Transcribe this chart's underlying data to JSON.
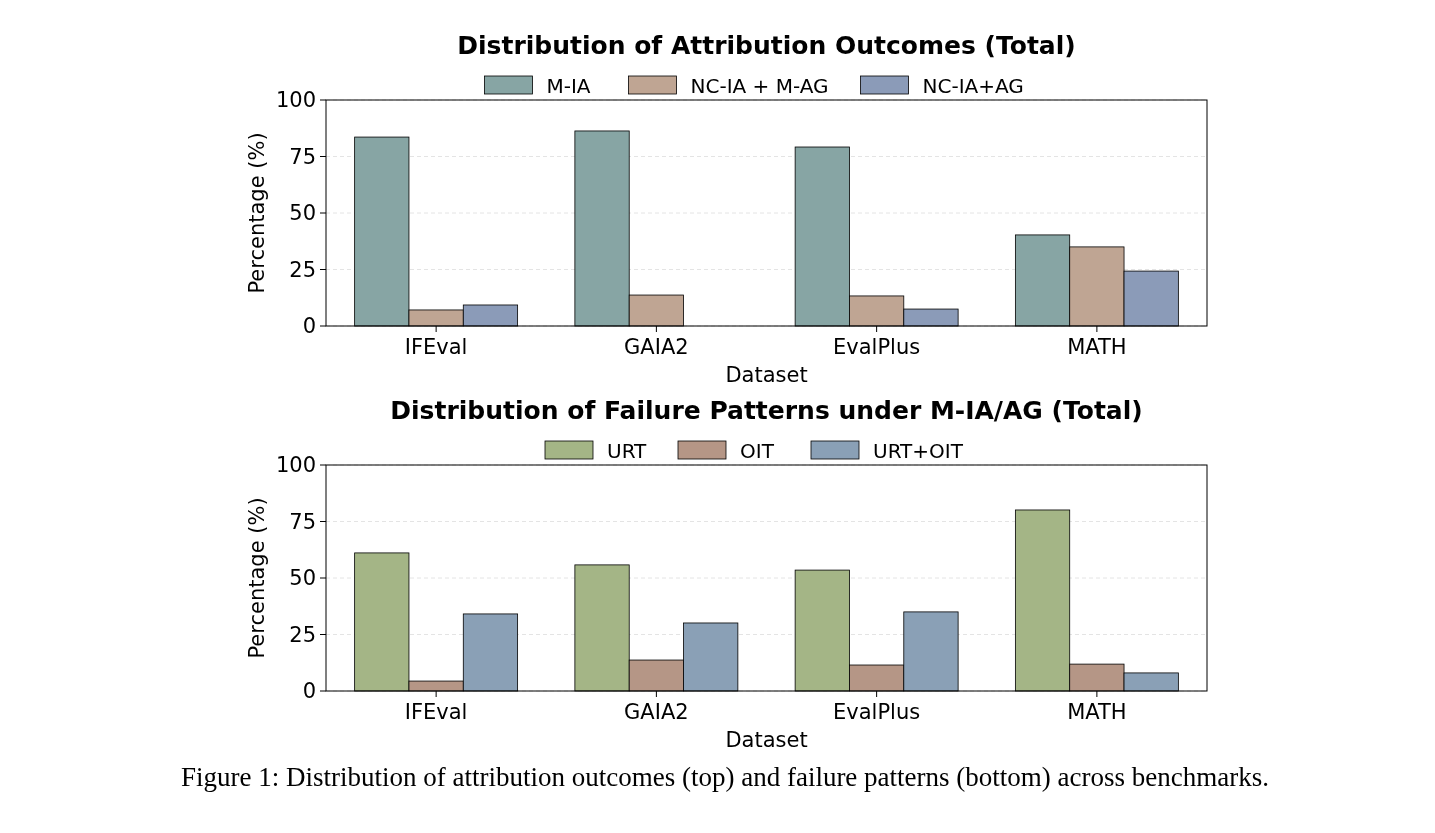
{
  "chart_data": [
    {
      "type": "bar",
      "title": "Distribution of Attribution Outcomes (Total)",
      "xlabel": "Dataset",
      "ylabel": "Percentage (%)",
      "categories": [
        "IFEval",
        "GAIA2",
        "EvalPlus",
        "MATH"
      ],
      "series": [
        {
          "name": "M-IA",
          "color": "#87a5a4",
          "values": [
            83.6,
            86.3,
            79.2,
            40.3
          ]
        },
        {
          "name": "NC-IA + M-AG",
          "color": "#bfa593",
          "values": [
            7.1,
            13.7,
            13.3,
            35.0
          ]
        },
        {
          "name": "NC-IA+AG",
          "color": "#8b9bb8",
          "values": [
            9.3,
            0,
            7.5,
            24.3
          ]
        }
      ],
      "ylim": [
        0,
        100
      ],
      "yticks": [
        0,
        25,
        50,
        75,
        100
      ],
      "grid": "y",
      "legend": "top"
    },
    {
      "type": "bar",
      "title": "Distribution of Failure Patterns under M-IA/AG (Total)",
      "xlabel": "Dataset",
      "ylabel": "Percentage (%)",
      "categories": [
        "IFEval",
        "GAIA2",
        "EvalPlus",
        "MATH"
      ],
      "series": [
        {
          "name": "URT",
          "color": "#a4b586",
          "values": [
            61.1,
            55.8,
            53.5,
            80.1
          ]
        },
        {
          "name": "OIT",
          "color": "#b59686",
          "values": [
            4.4,
            13.7,
            11.5,
            11.9
          ]
        },
        {
          "name": "URT+OIT",
          "color": "#8aa0b6",
          "values": [
            34.1,
            30.1,
            35.0,
            8.0
          ]
        }
      ],
      "ylim": [
        0,
        100
      ],
      "yticks": [
        0,
        25,
        50,
        75,
        100
      ],
      "grid": "y",
      "legend": "top",
      "annotations": [
        "Figure 1: Distribution of attribution outcomes (top) and failure patterns (bottom) across benchmarks."
      ]
    }
  ]
}
